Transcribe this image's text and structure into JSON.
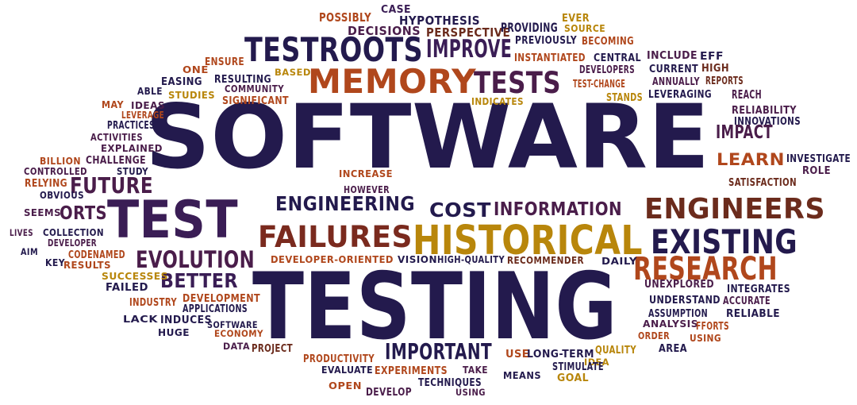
{
  "colors": {
    "navy": "#1f1b4d",
    "plum": "#4a1d4a",
    "brown": "#6b2b1c",
    "rust": "#b0471c",
    "gold": "#b8860b",
    "orange": "#d2691e",
    "background": "#ffffff"
  },
  "words": [
    {
      "text": "SOFTWARE",
      "color": "#231a4d"
    },
    {
      "text": "TESTING",
      "color": "#231a4d"
    },
    {
      "text": "TEST",
      "color": "#3a1d55"
    },
    {
      "text": "HISTORICAL",
      "color": "#b8860b"
    },
    {
      "text": "MEMORY",
      "color": "#b0471c"
    },
    {
      "text": "TESTROOTS",
      "color": "#231a4d"
    },
    {
      "text": "TESTS",
      "color": "#4a1d4a"
    },
    {
      "text": "FAILURES",
      "color": "#7a2a1e"
    },
    {
      "text": "EXISTING",
      "color": "#231a4d"
    },
    {
      "text": "RESEARCH",
      "color": "#b0471c"
    },
    {
      "text": "ENGINEERS",
      "color": "#6b2b1c"
    },
    {
      "text": "IMPROVE",
      "color": "#3a1d55"
    },
    {
      "text": "EVOLUTION",
      "color": "#4a1d4a"
    },
    {
      "text": "ENGINEERING",
      "color": "#231a4d"
    },
    {
      "text": "COST",
      "color": "#231a4d"
    },
    {
      "text": "INFORMATION",
      "color": "#4a1d4a"
    },
    {
      "text": "IMPORTANT",
      "color": "#231a4d"
    },
    {
      "text": "BETTER",
      "color": "#3a1d55"
    },
    {
      "text": "FUTURE",
      "color": "#4a1d4a"
    },
    {
      "text": "ORTS",
      "color": "#4a1d4a"
    },
    {
      "text": "LEARN",
      "color": "#b0471c"
    },
    {
      "text": "IMPACT",
      "color": "#4a1d4a"
    },
    {
      "text": "POSSIBLY",
      "color": "#b0471c"
    },
    {
      "text": "CASE",
      "color": "#3a1d55"
    },
    {
      "text": "HYPOTHESIS",
      "color": "#231a4d"
    },
    {
      "text": "DECISIONS",
      "color": "#4a1d4a"
    },
    {
      "text": "PERSPECTIVE",
      "color": "#6b2b1c"
    },
    {
      "text": "PROVIDING",
      "color": "#231a4d"
    },
    {
      "text": "EVER",
      "color": "#b8860b"
    },
    {
      "text": "SOURCE",
      "color": "#b8860b"
    },
    {
      "text": "PREVIOUSLY",
      "color": "#231a4d"
    },
    {
      "text": "BECOMING",
      "color": "#b0471c"
    },
    {
      "text": "INSTANTIATED",
      "color": "#b0471c"
    },
    {
      "text": "CENTRAL",
      "color": "#231a4d"
    },
    {
      "text": "INCLUDE",
      "color": "#4a1d4a"
    },
    {
      "text": "EFF",
      "color": "#231a4d"
    },
    {
      "text": "DEVELOPERS",
      "color": "#4a1d4a"
    },
    {
      "text": "CURRENT",
      "color": "#231a4d"
    },
    {
      "text": "HIGH",
      "color": "#6b2b1c"
    },
    {
      "text": "ANNUALLY",
      "color": "#4a1d4a"
    },
    {
      "text": "REPORTS",
      "color": "#6b2b1c"
    },
    {
      "text": "REACH",
      "color": "#4a1d4a"
    },
    {
      "text": "TEST-CHANGE",
      "color": "#b0471c"
    },
    {
      "text": "STANDS",
      "color": "#b8860b"
    },
    {
      "text": "LEVERAGING",
      "color": "#231a4d"
    },
    {
      "text": "RELIABILITY",
      "color": "#4a1d4a"
    },
    {
      "text": "INNOVATIONS",
      "color": "#231a4d"
    },
    {
      "text": "INDICATES",
      "color": "#b8860b"
    },
    {
      "text": "ENSURE",
      "color": "#b0471c"
    },
    {
      "text": "ONE",
      "color": "#b0471c"
    },
    {
      "text": "BASED",
      "color": "#b8860b"
    },
    {
      "text": "RESULTING",
      "color": "#231a4d"
    },
    {
      "text": "COMMUNITY",
      "color": "#4a1d4a"
    },
    {
      "text": "EASING",
      "color": "#231a4d"
    },
    {
      "text": "ABLE",
      "color": "#231a4d"
    },
    {
      "text": "STUDIES",
      "color": "#b8860b"
    },
    {
      "text": "SIGNIFICANT",
      "color": "#b0471c"
    },
    {
      "text": "MAY",
      "color": "#b0471c"
    },
    {
      "text": "IDEAS",
      "color": "#4a1d4a"
    },
    {
      "text": "LEVERAGE",
      "color": "#b0471c"
    },
    {
      "text": "PRACTICES",
      "color": "#231a4d"
    },
    {
      "text": "ACTIVITIES",
      "color": "#4a1d4a"
    },
    {
      "text": "EXPLAINED",
      "color": "#4a1d4a"
    },
    {
      "text": "BILLION",
      "color": "#b0471c"
    },
    {
      "text": "CHALLENGE",
      "color": "#4a1d4a"
    },
    {
      "text": "STUDY",
      "color": "#231a4d"
    },
    {
      "text": "CONTROLLED",
      "color": "#4a1d4a"
    },
    {
      "text": "RELYING",
      "color": "#b0471c"
    },
    {
      "text": "OBVIOUS",
      "color": "#231a4d"
    },
    {
      "text": "SEEMS",
      "color": "#4a1d4a"
    },
    {
      "text": "LIVES",
      "color": "#4a1d4a"
    },
    {
      "text": "COLLECTION",
      "color": "#231a4d"
    },
    {
      "text": "DEVELOPER",
      "color": "#4a1d4a"
    },
    {
      "text": "AIM",
      "color": "#231a4d"
    },
    {
      "text": "CODENAMED",
      "color": "#b0471c"
    },
    {
      "text": "KEY",
      "color": "#231a4d"
    },
    {
      "text": "RESULTS",
      "color": "#b0471c"
    },
    {
      "text": "SUCCESSES",
      "color": "#b8860b"
    },
    {
      "text": "FAILED",
      "color": "#231a4d"
    },
    {
      "text": "DEVELOPMENT",
      "color": "#b0471c"
    },
    {
      "text": "INDUSTRY",
      "color": "#b0471c"
    },
    {
      "text": "APPLICATIONS",
      "color": "#231a4d"
    },
    {
      "text": "LACK",
      "color": "#231a4d"
    },
    {
      "text": "INDUCES",
      "color": "#231a4d"
    },
    {
      "text": "SOFTWARE",
      "color": "#231a4d"
    },
    {
      "text": "HUGE",
      "color": "#231a4d"
    },
    {
      "text": "ECONOMY",
      "color": "#b0471c"
    },
    {
      "text": "DATA",
      "color": "#4a1d4a"
    },
    {
      "text": "PROJECT",
      "color": "#6b2b1c"
    },
    {
      "text": "INCREASE",
      "color": "#b0471c"
    },
    {
      "text": "HOWEVER",
      "color": "#4a1d4a"
    },
    {
      "text": "DEVELOPER-ORIENTED",
      "color": "#b0471c"
    },
    {
      "text": "VISION",
      "color": "#231a4d"
    },
    {
      "text": "HIGH-QUALITY",
      "color": "#231a4d"
    },
    {
      "text": "RECOMMENDER",
      "color": "#6b2b1c"
    },
    {
      "text": "DAILY",
      "color": "#231a4d"
    },
    {
      "text": "INVESTIGATE",
      "color": "#231a4d"
    },
    {
      "text": "ROLE",
      "color": "#4a1d4a"
    },
    {
      "text": "SATISFACTION",
      "color": "#6b2b1c"
    },
    {
      "text": "UNEXPLORED",
      "color": "#4a1d4a"
    },
    {
      "text": "INTEGRATES",
      "color": "#231a4d"
    },
    {
      "text": "UNDERSTAND",
      "color": "#231a4d"
    },
    {
      "text": "ACCURATE",
      "color": "#4a1d4a"
    },
    {
      "text": "ASSUMPTION",
      "color": "#231a4d"
    },
    {
      "text": "RELIABLE",
      "color": "#231a4d"
    },
    {
      "text": "ANALYSIS",
      "color": "#4a1d4a"
    },
    {
      "text": "FFORTS",
      "color": "#b0471c"
    },
    {
      "text": "ORDER",
      "color": "#b0471c"
    },
    {
      "text": "USING",
      "color": "#b0471c"
    },
    {
      "text": "AREA",
      "color": "#231a4d"
    },
    {
      "text": "QUALITY",
      "color": "#b8860b"
    },
    {
      "text": "USE",
      "color": "#b0471c"
    },
    {
      "text": "LONG-TERM",
      "color": "#231a4d"
    },
    {
      "text": "IDEA",
      "color": "#b8860b"
    },
    {
      "text": "STIMULATE",
      "color": "#231a4d"
    },
    {
      "text": "PRODUCTIVITY",
      "color": "#b0471c"
    },
    {
      "text": "EVALUATE",
      "color": "#231a4d"
    },
    {
      "text": "EXPERIMENTS",
      "color": "#b0471c"
    },
    {
      "text": "TAKE",
      "color": "#4a1d4a"
    },
    {
      "text": "MEANS",
      "color": "#231a4d"
    },
    {
      "text": "GOAL",
      "color": "#b8860b"
    },
    {
      "text": "OPEN",
      "color": "#b0471c"
    },
    {
      "text": "DEVELOP",
      "color": "#4a1d4a"
    },
    {
      "text": "TECHNIQUES",
      "color": "#231a4d"
    },
    {
      "text": "USING",
      "color": "#4a1d4a"
    }
  ]
}
